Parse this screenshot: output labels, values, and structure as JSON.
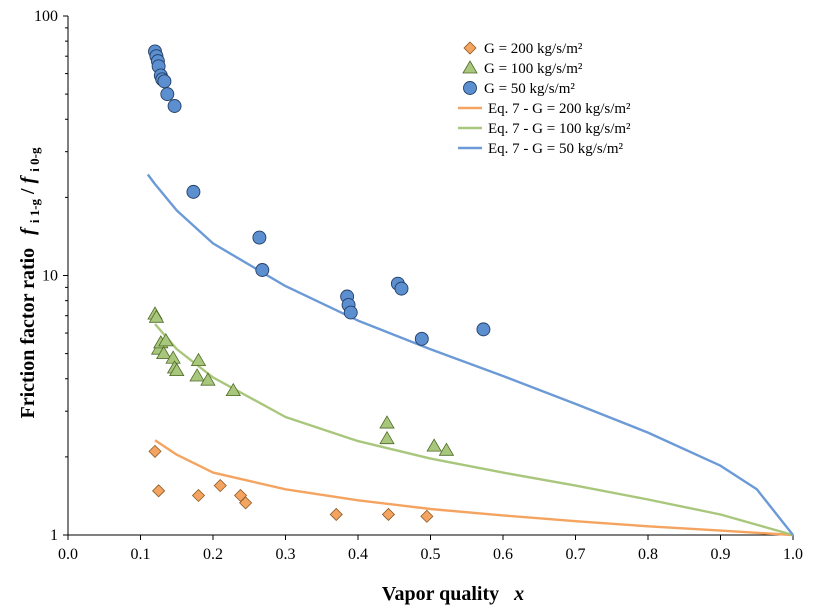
{
  "chart_data": {
    "type": "scatter",
    "xlabel": "Vapor quality",
    "xlabel_var": "x",
    "ylabel": "Friction factor ratio",
    "ylabel_f1": "f",
    "ylabel_sub1": "i 1-g",
    "ylabel_sep": " / ",
    "ylabel_f2": "f",
    "ylabel_sub2": "i 0-g",
    "xlim": [
      0,
      1
    ],
    "ylim": [
      1,
      100
    ],
    "yscale": "log",
    "x_ticks": [
      "0.0",
      "0.1",
      "0.2",
      "0.3",
      "0.4",
      "0.5",
      "0.6",
      "0.7",
      "0.8",
      "0.9",
      "1.0"
    ],
    "y_ticks": [
      "1",
      "10",
      "100"
    ],
    "legend_position": "top-right",
    "series": [
      {
        "name": "G = 200 kg/s/m²",
        "kind": "marker",
        "marker": "diamond",
        "color": "#F4A460",
        "stroke": "#8a5a25",
        "x": [
          0.12,
          0.125,
          0.18,
          0.21,
          0.238,
          0.245,
          0.37,
          0.442,
          0.495
        ],
        "y": [
          2.1,
          1.48,
          1.42,
          1.55,
          1.42,
          1.33,
          1.2,
          1.2,
          1.18
        ]
      },
      {
        "name": "G = 100 kg/s/m²",
        "kind": "marker",
        "marker": "triangle",
        "color": "#A9C77C",
        "stroke": "#4e6a26",
        "x": [
          0.12,
          0.122,
          0.125,
          0.128,
          0.132,
          0.135,
          0.145,
          0.147,
          0.15,
          0.178,
          0.18,
          0.193,
          0.228,
          0.44,
          0.44,
          0.505,
          0.522
        ],
        "y": [
          7.1,
          6.9,
          5.2,
          5.5,
          5.0,
          5.6,
          4.8,
          4.4,
          4.3,
          4.1,
          4.7,
          3.95,
          3.6,
          2.7,
          2.35,
          2.2,
          2.12
        ]
      },
      {
        "name": "G = 50 kg/s/m²",
        "kind": "marker",
        "marker": "circle",
        "color": "#5B8FD0",
        "stroke": "#243f66",
        "x": [
          0.12,
          0.122,
          0.124,
          0.125,
          0.128,
          0.13,
          0.133,
          0.137,
          0.147,
          0.173,
          0.264,
          0.268,
          0.385,
          0.387,
          0.39,
          0.455,
          0.46,
          0.488,
          0.573
        ],
        "y": [
          73,
          70,
          67,
          64,
          59,
          57,
          56,
          50,
          45,
          21,
          14,
          10.5,
          8.3,
          7.7,
          7.2,
          9.3,
          8.9,
          5.7,
          6.2
        ]
      },
      {
        "name": "Eq. 7 - G = 200 kg/s/m²",
        "kind": "line",
        "color": "#F4A460",
        "x": [
          0.12,
          0.15,
          0.2,
          0.3,
          0.4,
          0.5,
          0.6,
          0.7,
          0.8,
          0.9,
          1.0
        ],
        "y": [
          2.32,
          2.04,
          1.74,
          1.5,
          1.36,
          1.26,
          1.19,
          1.13,
          1.08,
          1.04,
          1.0
        ]
      },
      {
        "name": "Eq. 7 - G = 100 kg/s/m²",
        "kind": "line",
        "color": "#A9C77C",
        "x": [
          0.12,
          0.15,
          0.2,
          0.3,
          0.4,
          0.5,
          0.6,
          0.7,
          0.8,
          0.9,
          1.0
        ],
        "y": [
          6.5,
          5.2,
          4.05,
          2.85,
          2.3,
          1.97,
          1.74,
          1.55,
          1.37,
          1.2,
          1.0
        ]
      },
      {
        "name": "Eq. 7 - G = 50 kg/s/m²",
        "kind": "line",
        "color": "#6B9AD6",
        "x": [
          0.11,
          0.12,
          0.15,
          0.2,
          0.3,
          0.4,
          0.5,
          0.6,
          0.7,
          0.8,
          0.9,
          0.95,
          1.0
        ],
        "y": [
          24.5,
          22.5,
          17.8,
          13.3,
          9.1,
          6.7,
          5.2,
          4.1,
          3.2,
          2.48,
          1.85,
          1.5,
          1.0
        ]
      }
    ]
  }
}
